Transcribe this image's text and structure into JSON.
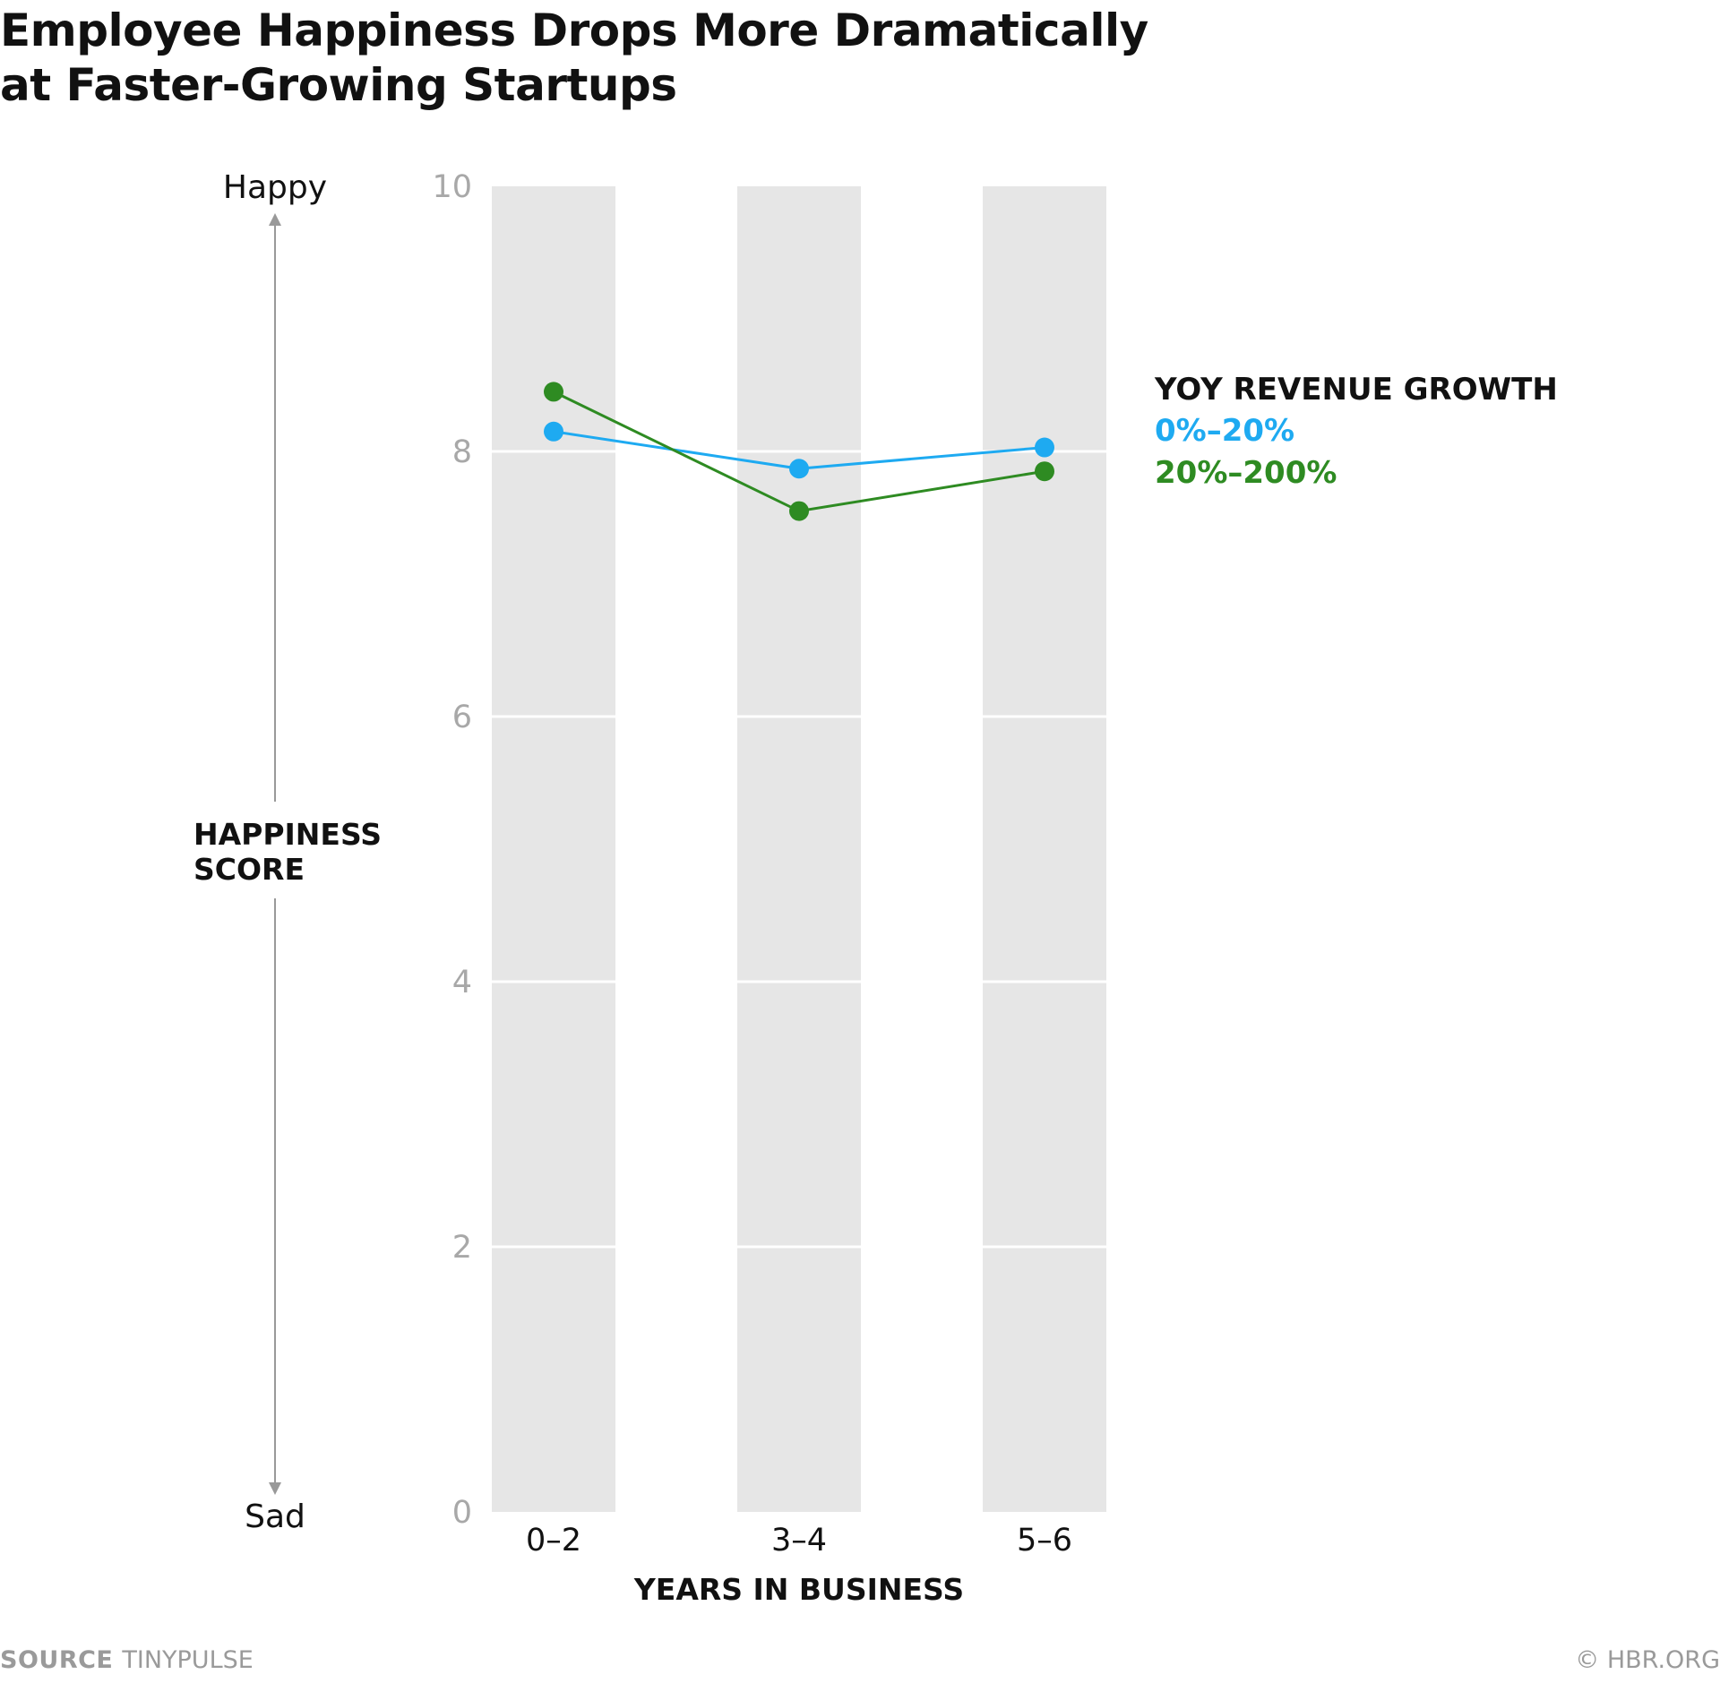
{
  "chart_data": {
    "type": "line",
    "title": "Employee Happiness Drops More Dramatically at Faster-Growing Startups",
    "title_lines": [
      "Employee Happiness Drops More Dramatically",
      "at Faster-Growing Startups"
    ],
    "categories": [
      "0–2",
      "3–4",
      "5–6"
    ],
    "series": [
      {
        "name": "0%–20%",
        "values": [
          8.15,
          7.87,
          8.03
        ],
        "color": "#1EAAF1"
      },
      {
        "name": "20%–200%",
        "values": [
          8.45,
          7.55,
          7.85
        ],
        "color": "#2E8B22"
      }
    ],
    "xlabel": "YEARS IN BUSINESS",
    "ylabel": [
      "HAPPINESS",
      "SCORE"
    ],
    "y_top_label": "Happy",
    "y_bottom_label": "Sad",
    "ylim": [
      0,
      10
    ],
    "yticks": [
      0,
      2,
      4,
      6,
      8,
      10
    ],
    "legend_title": "YOY REVENUE GROWTH",
    "legend_position": "right",
    "grid": true
  },
  "footer": {
    "source_label": "SOURCE",
    "source_value": "TINYPULSE",
    "copyright": "© HBR.ORG"
  }
}
